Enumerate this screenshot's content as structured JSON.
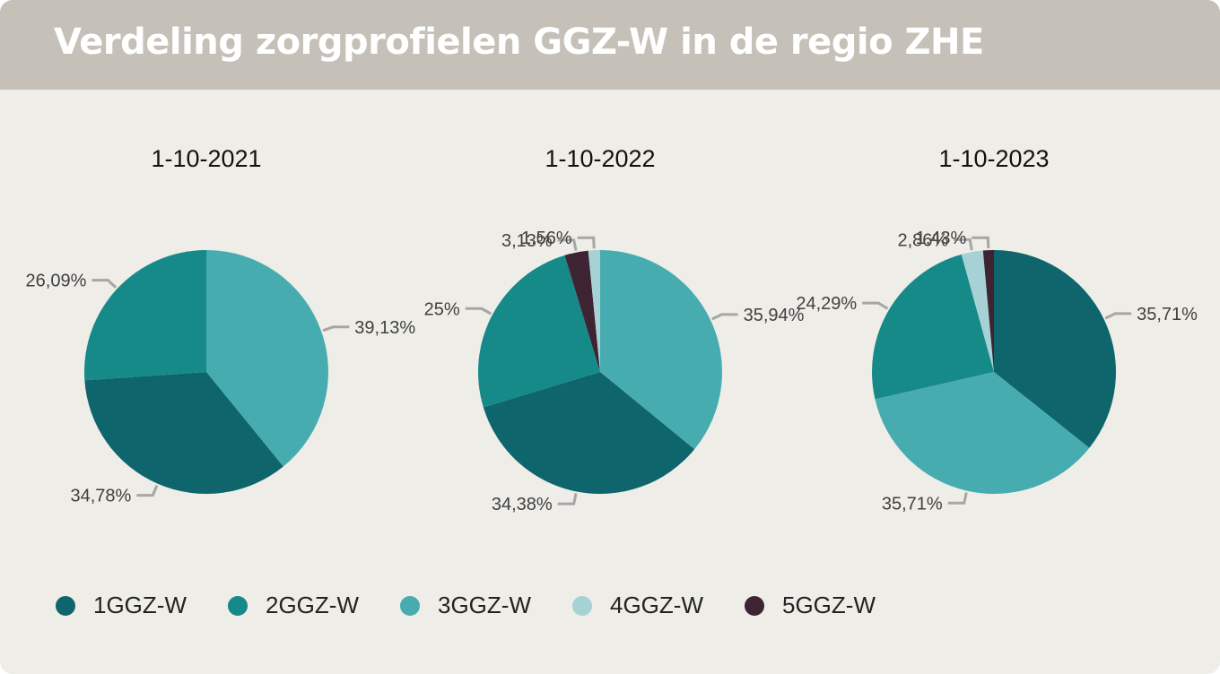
{
  "title": "Verdeling zorgprofielen GGZ-W in de regio ZHE",
  "colors": {
    "1GGZ-W": "#0e666c",
    "2GGZ-W": "#168989",
    "3GGZ-W": "#47acb0",
    "4GGZ-W": "#a7d2d5",
    "5GGZ-W": "#3e2333",
    "leader": "#a6a6a6"
  },
  "legend": [
    {
      "label": "1GGZ-W",
      "color": "#0e666c"
    },
    {
      "label": "2GGZ-W",
      "color": "#168989"
    },
    {
      "label": "3GGZ-W",
      "color": "#47acb0"
    },
    {
      "label": "4GGZ-W",
      "color": "#a7d2d5"
    },
    {
      "label": "5GGZ-W",
      "color": "#3e2333"
    }
  ],
  "chart_data": [
    {
      "type": "pie",
      "title": "1-10-2021",
      "slices": [
        {
          "category": "3GGZ-W",
          "value": 39.13,
          "label": "39,13%"
        },
        {
          "category": "1GGZ-W",
          "value": 34.78,
          "label": "34,78%"
        },
        {
          "category": "2GGZ-W",
          "value": 26.09,
          "label": "26,09%"
        }
      ]
    },
    {
      "type": "pie",
      "title": "1-10-2022",
      "slices": [
        {
          "category": "3GGZ-W",
          "value": 35.94,
          "label": "35,94%"
        },
        {
          "category": "1GGZ-W",
          "value": 34.38,
          "label": "34,38%"
        },
        {
          "category": "2GGZ-W",
          "value": 25.0,
          "label": "25%"
        },
        {
          "category": "5GGZ-W",
          "value": 3.13,
          "label": "3,13%"
        },
        {
          "category": "4GGZ-W",
          "value": 1.56,
          "label": "1,56%"
        }
      ]
    },
    {
      "type": "pie",
      "title": "1-10-2023",
      "slices": [
        {
          "category": "1GGZ-W",
          "value": 35.71,
          "label": "35,71%"
        },
        {
          "category": "3GGZ-W",
          "value": 35.71,
          "label": "35,71%"
        },
        {
          "category": "2GGZ-W",
          "value": 24.29,
          "label": "24,29%"
        },
        {
          "category": "4GGZ-W",
          "value": 2.86,
          "label": "2,86%"
        },
        {
          "category": "5GGZ-W",
          "value": 1.43,
          "label": "1,43%"
        }
      ]
    }
  ]
}
